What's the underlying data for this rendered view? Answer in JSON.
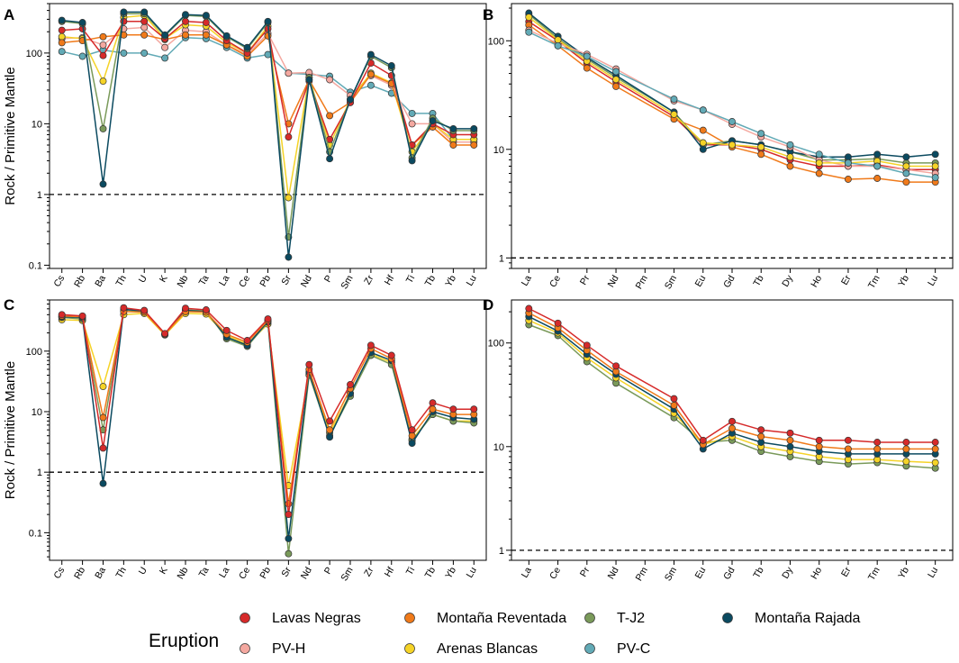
{
  "figure": {
    "legend": {
      "title": "Eruption",
      "entries": [
        {
          "name": "Lavas Negras",
          "color": "#d62a2a"
        },
        {
          "name": "Montaña Reventada",
          "color": "#f07a1a"
        },
        {
          "name": "T-J2",
          "color": "#7a9a5a"
        },
        {
          "name": "Montaña Rajada",
          "color": "#0b4a60"
        },
        {
          "name": "PV-H",
          "color": "#f4a8a0"
        },
        {
          "name": "Arenas Blancas",
          "color": "#f5d327"
        },
        {
          "name": "PV-C",
          "color": "#62aab6"
        }
      ]
    }
  },
  "chart_data": [
    {
      "panel": "A",
      "type": "line",
      "yscale": "log",
      "ylim": [
        0.09,
        500
      ],
      "ylabel": "Rock / Primitive Mantle",
      "reference_line": 1,
      "yticks": [
        0.1,
        1,
        10,
        100
      ],
      "ytick_labels": [
        "0.1",
        "1",
        "10",
        "100"
      ],
      "categories": [
        "Cs",
        "Rb",
        "Ba",
        "Th",
        "U",
        "K",
        "Nb",
        "Ta",
        "La",
        "Ce",
        "Pb",
        "Sr",
        "Nd",
        "P",
        "Sm",
        "Zr",
        "Hf",
        "Ti",
        "Tb",
        "Yb",
        "Lu"
      ],
      "series": [
        {
          "name": "PV-C",
          "values": [
            105,
            90,
            110,
            100,
            100,
            85,
            165,
            160,
            120,
            85,
            95,
            52,
            50,
            47,
            28,
            35,
            27,
            14,
            14,
            6,
            6
          ]
        },
        {
          "name": "PV-H",
          "values": [
            160,
            165,
            130,
            220,
            230,
            120,
            210,
            200,
            130,
            95,
            190,
            52,
            53,
            42,
            25,
            48,
            35,
            10,
            10,
            5.5,
            5.5
          ]
        },
        {
          "name": "Arenas Blancas",
          "values": [
            170,
            160,
            40,
            320,
            340,
            160,
            250,
            240,
            140,
            100,
            240,
            0.9,
            45,
            5,
            22,
            52,
            38,
            4,
            10,
            6,
            6
          ]
        },
        {
          "name": "Montaña Reventada",
          "values": [
            140,
            150,
            170,
            180,
            180,
            155,
            180,
            180,
            130,
            90,
            175,
            10,
            42,
            13,
            20,
            50,
            37,
            5,
            9,
            5,
            5
          ]
        },
        {
          "name": "Lavas Negras",
          "values": [
            210,
            220,
            92,
            280,
            280,
            160,
            280,
            270,
            150,
            100,
            220,
            6.5,
            40,
            6,
            20,
            72,
            48,
            5,
            10,
            7,
            7
          ]
        },
        {
          "name": "T-J2",
          "values": [
            280,
            260,
            8.5,
            360,
            360,
            175,
            340,
            330,
            170,
            115,
            270,
            0.25,
            45,
            4,
            22,
            90,
            62,
            3.3,
            12,
            8,
            8
          ]
        },
        {
          "name": "Montaña Rajada",
          "values": [
            290,
            270,
            1.4,
            380,
            380,
            180,
            350,
            340,
            175,
            120,
            280,
            0.13,
            42,
            3.2,
            22,
            95,
            66,
            3,
            11,
            8.5,
            8.5
          ]
        }
      ]
    },
    {
      "panel": "B",
      "type": "line",
      "yscale": "log",
      "ylim": [
        0.8,
        220
      ],
      "ylabel": "",
      "reference_line": 1,
      "yticks": [
        1,
        10,
        100
      ],
      "ytick_labels": [
        "1",
        "10",
        "100"
      ],
      "categories": [
        "La",
        "Ce",
        "Pr",
        "Nd",
        "Pm",
        "Sm",
        "Eu",
        "Gd",
        "Tb",
        "Dy",
        "Ho",
        "Er",
        "Tm",
        "Yb",
        "Lu"
      ],
      "series": [
        {
          "name": "Lavas Negras",
          "values": [
            150,
            100,
            62,
            42,
            null,
            20,
            11,
            11,
            10,
            8,
            7,
            7,
            7.2,
            6.5,
            6.5
          ]
        },
        {
          "name": "Montaña Reventada",
          "values": [
            140,
            90,
            56,
            38,
            null,
            19,
            15,
            10.5,
            9,
            7,
            6,
            5.3,
            5.4,
            5,
            5
          ]
        },
        {
          "name": "T-J2",
          "values": [
            175,
            105,
            68,
            46,
            null,
            22,
            11,
            12,
            11,
            9.5,
            8,
            8,
            8.2,
            7.5,
            7.5
          ]
        },
        {
          "name": "Montaña Rajada",
          "values": [
            180,
            110,
            70,
            48,
            null,
            22,
            10,
            12,
            11,
            9.5,
            8.5,
            8.5,
            9,
            8.5,
            9
          ]
        },
        {
          "name": "PV-H",
          "values": [
            125,
            95,
            75,
            55,
            null,
            28,
            23,
            17,
            13,
            10.5,
            8,
            7,
            7,
            6.5,
            6
          ]
        },
        {
          "name": "Arenas Blancas",
          "values": [
            165,
            102,
            65,
            44,
            null,
            21,
            11.5,
            11,
            10.5,
            8.5,
            7.5,
            7.5,
            7.8,
            7,
            7
          ]
        },
        {
          "name": "PV-C",
          "values": [
            120,
            90,
            72,
            52,
            null,
            29,
            23,
            18,
            14,
            11,
            9,
            7.5,
            7,
            6,
            5.5
          ]
        }
      ]
    },
    {
      "panel": "C",
      "type": "line",
      "yscale": "log",
      "ylim": [
        0.035,
        700
      ],
      "ylabel": "Rock / Primitive Mantle",
      "reference_line": 1,
      "yticks": [
        0.1,
        1,
        10,
        100
      ],
      "ytick_labels": [
        "0.1",
        "1",
        "10",
        "100"
      ],
      "categories": [
        "Cs",
        "Rb",
        "Ba",
        "Th",
        "U",
        "K",
        "Nb",
        "Ta",
        "La",
        "Ce",
        "Pb",
        "Sr",
        "Nd",
        "P",
        "Sm",
        "Zr",
        "Hf",
        "Ti",
        "Tb",
        "Yb",
        "Lu"
      ],
      "series": [
        {
          "name": "Arenas Blancas",
          "values": [
            330,
            320,
            26,
            400,
            420,
            185,
            420,
            410,
            180,
            130,
            280,
            0.6,
            42,
            4.5,
            20,
            90,
            65,
            3.5,
            9,
            7,
            7
          ]
        },
        {
          "name": "T-J2",
          "values": [
            360,
            340,
            5,
            480,
            450,
            190,
            480,
            460,
            160,
            120,
            300,
            0.045,
            40,
            4,
            18,
            85,
            60,
            3.3,
            9,
            7,
            6.5
          ]
        },
        {
          "name": "Montaña Rajada",
          "values": [
            370,
            360,
            0.65,
            490,
            460,
            190,
            470,
            450,
            170,
            125,
            310,
            0.08,
            45,
            3.8,
            20,
            95,
            70,
            3,
            10,
            8,
            7.5
          ]
        },
        {
          "name": "Montaña Reventada",
          "values": [
            380,
            370,
            8,
            450,
            440,
            190,
            450,
            440,
            190,
            140,
            320,
            0.3,
            50,
            5,
            24,
            110,
            75,
            4,
            11,
            9,
            9
          ]
        },
        {
          "name": "Lavas Negras",
          "values": [
            400,
            380,
            2.5,
            520,
            470,
            195,
            510,
            480,
            220,
            150,
            340,
            0.2,
            60,
            7,
            28,
            125,
            85,
            5,
            14,
            11,
            11
          ]
        }
      ]
    },
    {
      "panel": "D",
      "type": "line",
      "yscale": "log",
      "ylim": [
        0.8,
        260
      ],
      "ylabel": "",
      "reference_line": 1,
      "yticks": [
        1,
        10,
        100
      ],
      "ytick_labels": [
        "1",
        "10",
        "100"
      ],
      "categories": [
        "La",
        "Ce",
        "Pr",
        "Nd",
        "Pm",
        "Sm",
        "Eu",
        "Gd",
        "Tb",
        "Dy",
        "Ho",
        "Er",
        "Tm",
        "Yb",
        "Lu"
      ],
      "series": [
        {
          "name": "T-J2",
          "values": [
            150,
            118,
            66,
            41,
            null,
            19,
            11,
            11.5,
            9,
            8,
            7.2,
            6.8,
            7,
            6.5,
            6.2
          ]
        },
        {
          "name": "Arenas Blancas",
          "values": [
            165,
            125,
            72,
            46,
            null,
            21,
            10.5,
            12.5,
            10,
            9,
            8,
            7.5,
            7.5,
            7.2,
            7
          ]
        },
        {
          "name": "Montaña Rajada",
          "values": [
            180,
            130,
            78,
            50,
            null,
            23,
            9.5,
            13.5,
            11,
            10,
            9,
            8.5,
            8.5,
            8.5,
            8.5
          ]
        },
        {
          "name": "Montaña Reventada",
          "values": [
            195,
            140,
            85,
            53,
            null,
            25,
            10.5,
            15,
            12.5,
            11.5,
            10,
            9.5,
            9.5,
            9.5,
            9.5
          ]
        },
        {
          "name": "Lavas Negras",
          "values": [
            215,
            155,
            95,
            60,
            null,
            29,
            11.5,
            17.5,
            14.5,
            13.5,
            11.5,
            11.5,
            11,
            11,
            11
          ]
        }
      ]
    }
  ]
}
